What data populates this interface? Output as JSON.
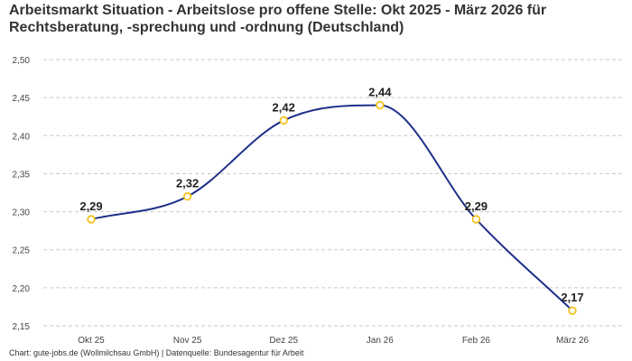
{
  "title": {
    "line1": "Arbeitsmarkt Situation - Arbeitslose pro offene Stelle: Okt 2025 - März 2026 für",
    "line2": "Rechtsberatung, -sprechung und -ordnung (Deutschland)"
  },
  "footer": "Chart: gute-jobs.de (Wollmilchsau GmbH) | Datenquelle: Bundesagentur für Arbeit",
  "chart_data": {
    "type": "line",
    "categories": [
      "Okt 25",
      "Nov 25",
      "Dez 25",
      "Jan 26",
      "Feb 26",
      "März 26"
    ],
    "series": [
      {
        "values": [
          2.29,
          2.32,
          2.42,
          2.44,
          2.29,
          2.17
        ]
      }
    ],
    "data_labels": [
      "2,29",
      "2,32",
      "2,42",
      "2,44",
      "2,29",
      "2,17"
    ],
    "yticks": [
      "2,15",
      "2,20",
      "2,25",
      "2,30",
      "2,35",
      "2,40",
      "2,45",
      "2,50"
    ],
    "ylim": [
      2.15,
      2.5
    ],
    "grid": "horizontal-dashed",
    "line_color": "#1f2f8a",
    "marker_color": "#f2c21b"
  }
}
